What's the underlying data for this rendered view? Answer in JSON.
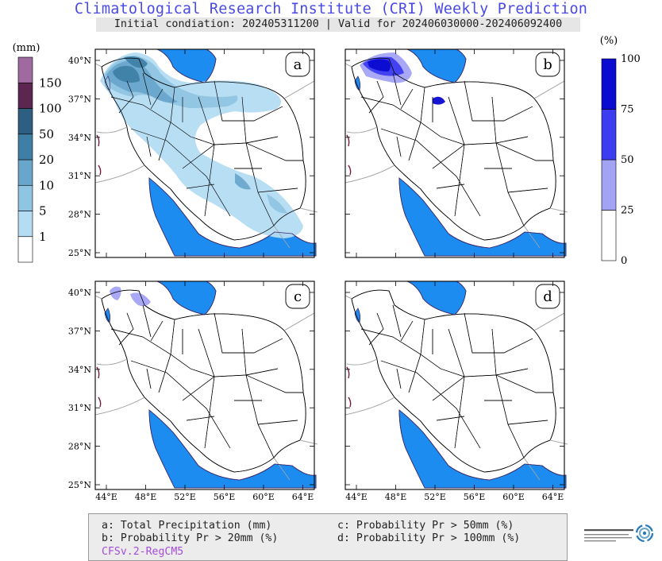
{
  "title": "Climatological Research Institute (CRI) Weekly Prediction",
  "subtitle": "Initial condiation: 202405311200 | Valid for 202406030000-202406092400",
  "left_legend": {
    "unit": "(mm)",
    "labels": [
      "1",
      "5",
      "10",
      "20",
      "50",
      "100",
      "150"
    ],
    "colors": [
      "#ffffff",
      "#b4dcf2",
      "#8fc4e2",
      "#6aa6cc",
      "#3f7fa6",
      "#2c5f80",
      "#5c2650",
      "#9e6aa0"
    ]
  },
  "right_legend": {
    "unit": "(%)",
    "labels": [
      "0",
      "25",
      "50",
      "75",
      "100"
    ],
    "colors": [
      "#ffffff",
      "#a3a3f5",
      "#3c3cf0",
      "#0a0ad0"
    ]
  },
  "panels": [
    {
      "id": "a",
      "label": "a"
    },
    {
      "id": "b",
      "label": "b"
    },
    {
      "id": "c",
      "label": "c"
    },
    {
      "id": "d",
      "label": "d"
    }
  ],
  "lat_ticks": [
    "40°N",
    "37°N",
    "34°N",
    "31°N",
    "28°N",
    "25°N"
  ],
  "lon_ticks": [
    "44°E",
    "48°E",
    "52°E",
    "56°E",
    "60°E",
    "64°E"
  ],
  "footer": {
    "line_a": "a: Total Precipitation (mm)",
    "line_b": "b: Probability Pr > 20mm (%)",
    "line_c": "c: Probability Pr > 50mm (%)",
    "line_d": "d: Probability Pr > 100mm (%)",
    "model": "CFSv.2-RegCM5",
    "model_color": "#a64dd8"
  },
  "colors": {
    "water": "#1c8cf0",
    "title": "#4a4ae6"
  }
}
